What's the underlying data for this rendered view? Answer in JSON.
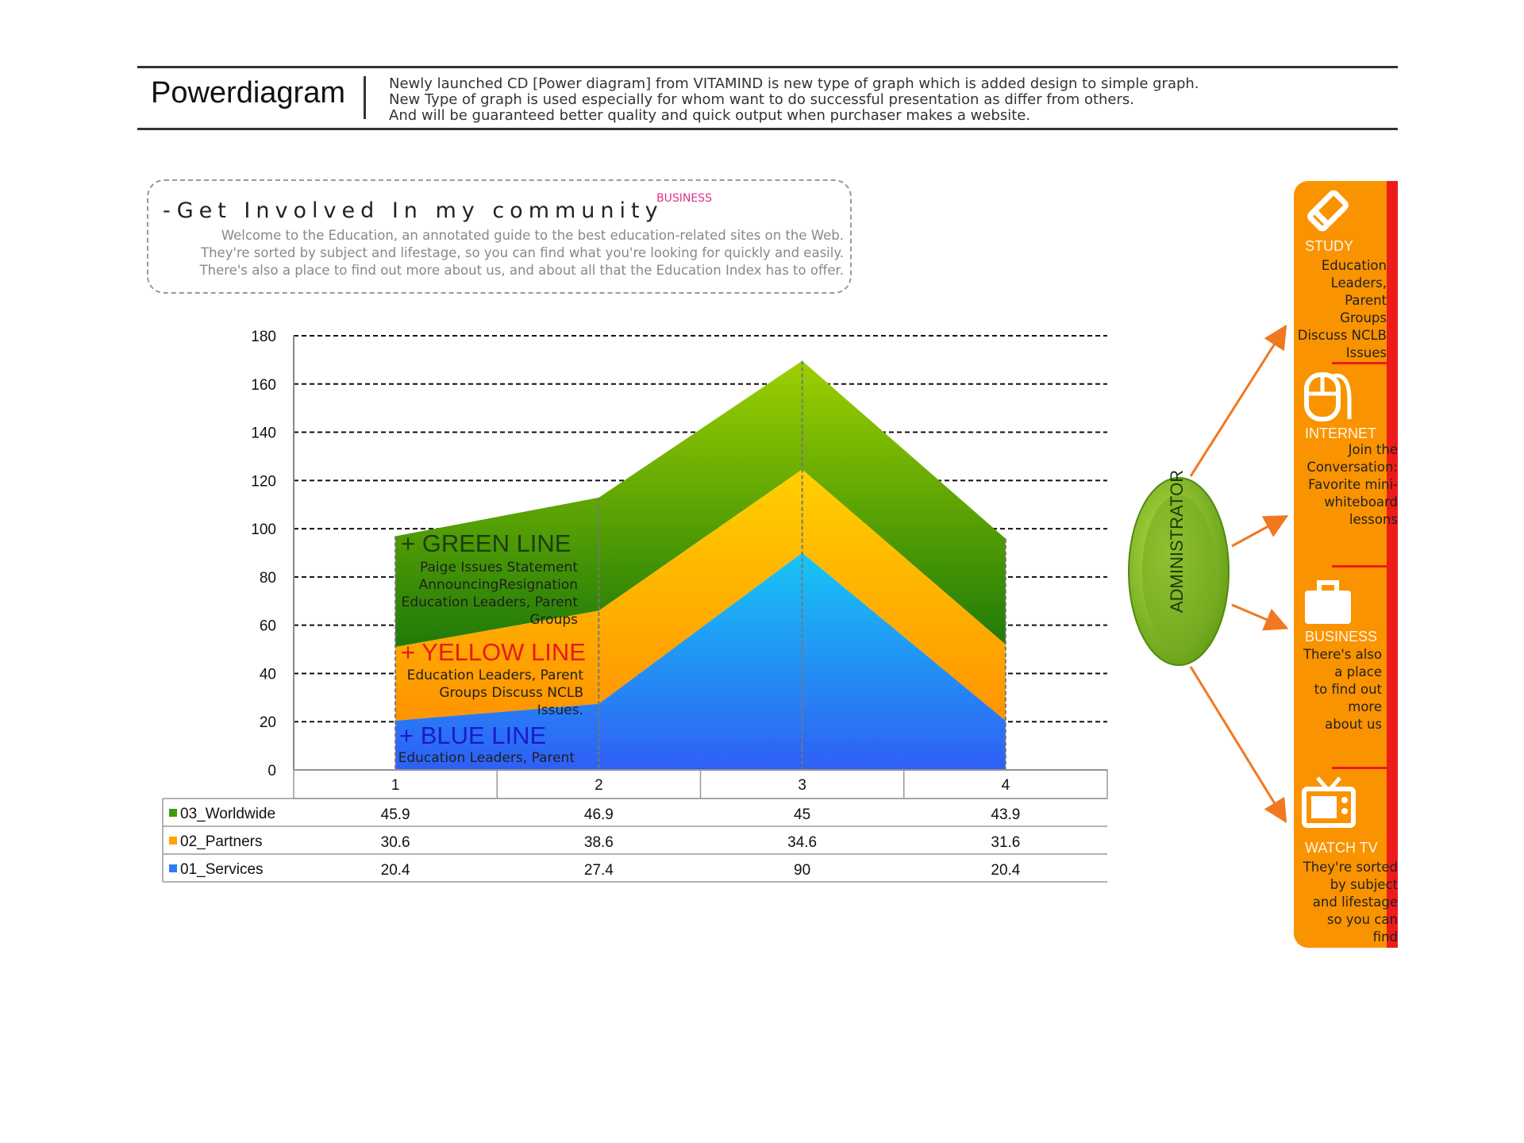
{
  "header": {
    "brand": "Powerdiagram",
    "description": [
      "Newly launched CD [Power diagram] from VITAMIND is new type of graph which is added design to simple graph.",
      "New Type of graph is used especially for whom want to do successful presentation as differ from others.",
      "And will be guaranteed better quality and quick output when purchaser makes a website."
    ]
  },
  "intro": {
    "title": "-Get Involved In my community",
    "tag": "BUSINESS",
    "lines": [
      "Welcome to the Education, an annotated guide to the best education-related sites on the Web.",
      "They're sorted by subject and lifestage, so you can find what you're looking for quickly and easily.",
      "There's also a place to find out more about us, and about all that the Education Index has to offer."
    ]
  },
  "chart_data": {
    "type": "area",
    "stacked": true,
    "categories": [
      "1",
      "2",
      "3",
      "4"
    ],
    "series": [
      {
        "name": "01_Services",
        "values": [
          20.4,
          27.4,
          90,
          20.4
        ],
        "color": "#2f7df5"
      },
      {
        "name": "02_Partners",
        "values": [
          30.6,
          38.6,
          34.6,
          31.6
        ],
        "color": "#ffa500"
      },
      {
        "name": "03_Worldwide",
        "values": [
          45.9,
          46.9,
          45,
          43.9
        ],
        "color": "#3f9a10"
      }
    ],
    "ylim": [
      0,
      180
    ],
    "yticks": [
      "0",
      "20",
      "40",
      "60",
      "80",
      "100",
      "120",
      "140",
      "160",
      "180"
    ],
    "grid": true,
    "legend": "data-table",
    "table_rows": [
      {
        "name": "03_Worldwide",
        "color": "#3f9a10",
        "values": [
          "45.9",
          "46.9",
          "45",
          "43.9"
        ]
      },
      {
        "name": "02_Partners",
        "color": "#ffa500",
        "values": [
          "30.6",
          "38.6",
          "34.6",
          "31.6"
        ]
      },
      {
        "name": "01_Services",
        "color": "#2f7df5",
        "values": [
          "20.4",
          "27.4",
          "90",
          "20.4"
        ]
      }
    ],
    "annotations": [
      {
        "title": "+ GREEN LINE",
        "color": "#1e3d10",
        "lines": [
          "Paige Issues Statement",
          "AnnouncingResignation",
          "Education Leaders, Parent",
          "Groups"
        ]
      },
      {
        "title": "+ YELLOW LINE",
        "color": "#e51b1b",
        "lines": [
          "Education Leaders, Parent",
          "Groups Discuss NCLB",
          "Issues."
        ]
      },
      {
        "title": "+ BLUE LINE",
        "color": "#1a1acc",
        "lines": [
          "Education Leaders, Parent"
        ]
      }
    ]
  },
  "admin": {
    "label": "ADMINISTRATOR"
  },
  "panel": {
    "items": [
      {
        "icon": "pencil-icon",
        "caption": "STUDY",
        "lines": [
          "Education",
          "Leaders,",
          "Parent",
          "Groups",
          "Discuss NCLB",
          "Issues"
        ]
      },
      {
        "icon": "mouse-icon",
        "caption": "INTERNET",
        "lines": [
          "Join the",
          "Conversation:",
          "Favorite mini-",
          "whiteboard",
          "lessons"
        ]
      },
      {
        "icon": "briefcase-icon",
        "caption": "BUSINESS",
        "lines": [
          "There's also",
          "a place",
          "to find out",
          "more",
          "about us"
        ]
      },
      {
        "icon": "tv-icon",
        "caption": "WATCH TV",
        "lines": [
          "They're sorted",
          "by subject",
          "and lifestage",
          "so you can",
          "find"
        ]
      }
    ]
  },
  "colors": {
    "panel": "#fa9300",
    "panel_bar": "#ee1b1b",
    "arrow": "#f07820",
    "admin": "#7ab51d"
  }
}
